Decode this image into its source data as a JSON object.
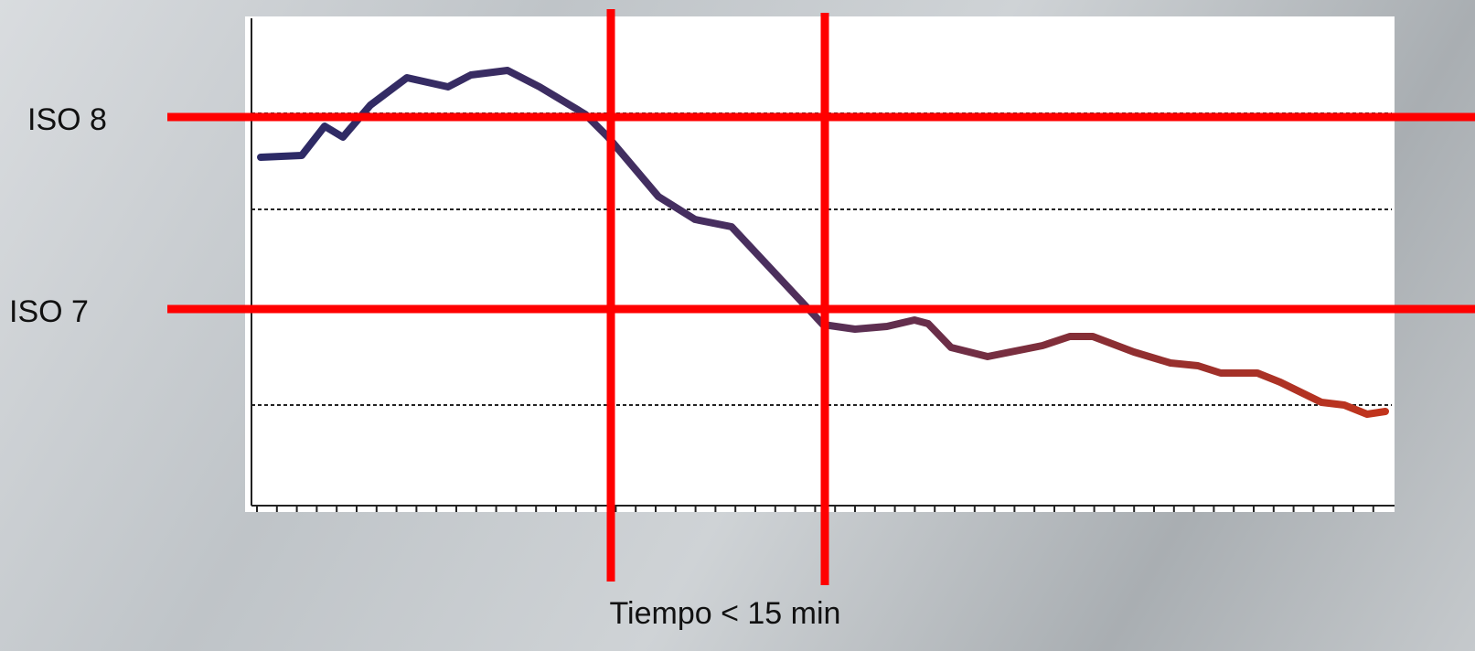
{
  "labels": {
    "iso_8": "ISO 8",
    "iso_7": "ISO 7",
    "x_label": "Tiempo < 15 min"
  }
}
